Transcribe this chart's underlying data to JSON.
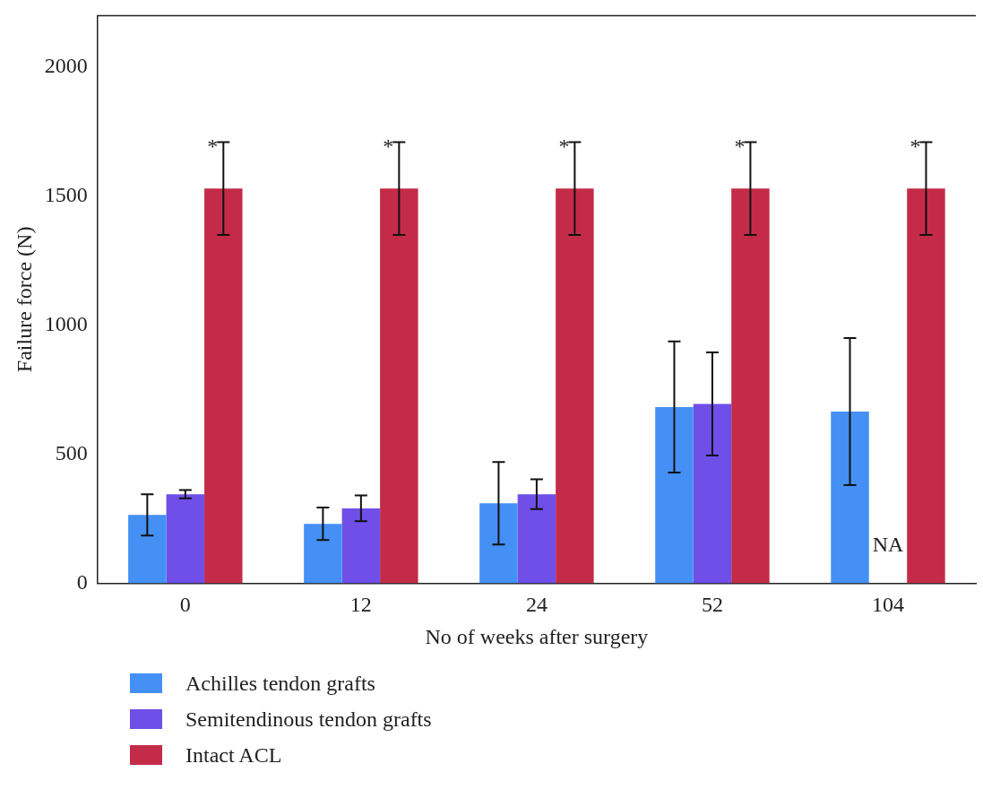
{
  "chart_data": {
    "type": "bar",
    "xlabel": "No of weeks after surgery",
    "ylabel": "Failure force (N)",
    "categories": [
      "0",
      "12",
      "24",
      "52",
      "104"
    ],
    "series": [
      {
        "name": "Achilles tendon grafts",
        "color": "#4490f4",
        "values": [
          265,
          230,
          310,
          683,
          665
        ],
        "errors": [
          80,
          63,
          160,
          254,
          285
        ]
      },
      {
        "name": "Semitendinous tendon grafts",
        "color": "#6f4fe8",
        "values": [
          345,
          290,
          345,
          695,
          null
        ],
        "errors": [
          16,
          50,
          58,
          200,
          null
        ]
      },
      {
        "name": "Intact ACL",
        "color": "#c42b48",
        "values": [
          1530,
          1530,
          1530,
          1530,
          1530
        ],
        "errors": [
          180,
          180,
          180,
          180,
          180
        ]
      }
    ],
    "annotations": [
      "*",
      "*",
      "*",
      "*",
      "*",
      "NA"
    ],
    "ylim": [
      0,
      2200
    ],
    "yticks": [
      0,
      500,
      1000,
      1500,
      2000
    ],
    "grid": false,
    "legend": "bottom"
  }
}
